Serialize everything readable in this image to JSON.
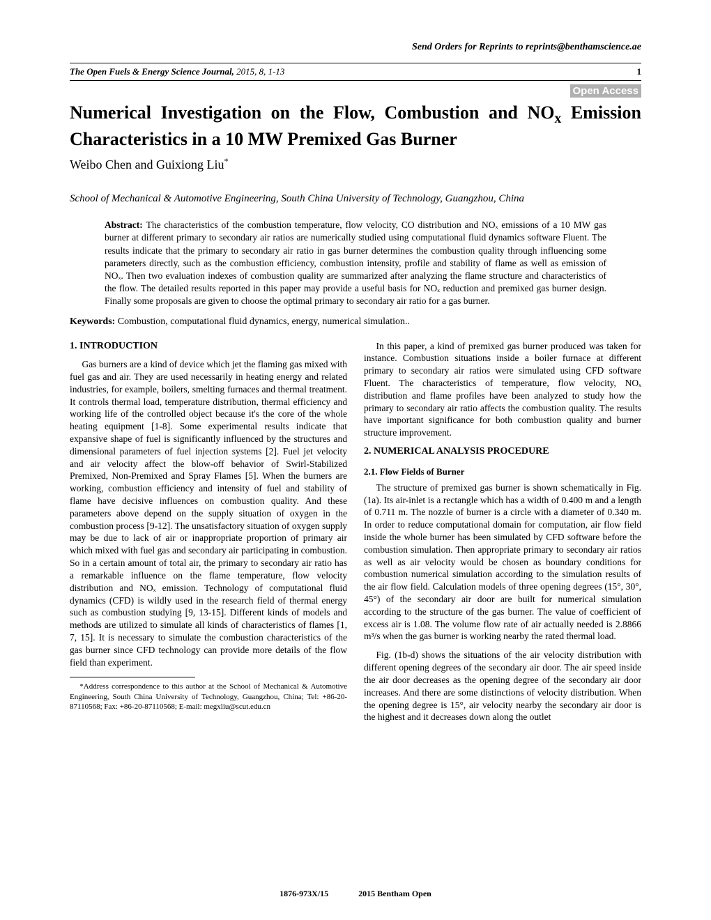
{
  "reprints": "Send Orders for Reprints to reprints@benthamscience.ae",
  "journal": {
    "name": "The Open Fuels & Energy Science Journal,",
    "year_vol_pages": " 2015, 8, 1-13",
    "page": "1"
  },
  "open_access": "Open Access",
  "title_line1": "Numerical Investigation on the Flow, Combustion and NO",
  "title_sub": "x",
  "title_line1b": " Emission",
  "title_line2": "Characteristics in a 10 MW Premixed Gas Burner",
  "authors": "Weibo Chen and Guixiong Liu",
  "author_sup": "*",
  "affiliation": "School of Mechanical & Automotive Engineering, South China University of Technology, Guangzhou, China",
  "abstract_label": "Abstract: ",
  "abstract_text": "The characteristics of the combustion temperature, flow velocity, CO distribution and NOₓ emissions of a 10 MW gas burner at different primary to secondary air ratios are numerically studied using computational fluid dynamics software Fluent. The results indicate that the primary to secondary air ratio in gas burner determines the combustion quality through influencing some parameters directly, such as the combustion efficiency, combustion intensity, profile and stability of flame as well as emission of NOₓ. Then two evaluation indexes of combustion quality are summarized after analyzing the flame structure and characteristics of the flow. The detailed results reported in this paper may provide a useful basis for NOₓ reduction and premixed gas burner design. Finally some proposals are given to choose the optimal primary to secondary air ratio for a gas burner.",
  "keywords_label": "Keywords: ",
  "keywords_text": "Combustion, computational fluid dynamics, energy, numerical simulation..",
  "sec1_heading": "1. INTRODUCTION",
  "sec1_p1": "Gas burners are a kind of device which jet the flaming gas mixed with fuel gas and air. They are used necessarily in heating energy and related industries, for example, boilers, smelting furnaces and thermal treatment. It controls thermal load, temperature distribution, thermal efficiency and working life of the controlled object because it's the core of the whole heating equipment [1-8]. Some experimental results indicate that expansive shape of fuel is significantly influenced by the structures and dimensional parameters of fuel injection systems [2]. Fuel jet velocity and air velocity affect the blow-off behavior of Swirl-Stabilized Premixed, Non-Premixed and Spray Flames [5]. When the burners are working, combustion efficiency and intensity of fuel and stability of flame have decisive influences on combustion quality. And these parameters above depend on the supply situation of oxygen in the combustion process [9-12]. The unsatisfactory situation of oxygen supply may be due to lack of air or inappropriate proportion of primary air which mixed with fuel gas and secondary air participating in combustion. So in a certain amount of total air, the primary to secondary air ratio has a remarkable influence on the flame temperature, flow velocity distribution and NOₓ emission. Technology of computational fluid dynamics (CFD) is wildly used in the research field of thermal energy such as combustion studying [9, 13-15]. Different kinds of models and methods are utilized to simulate all kinds of characteristics of flames [1, 7, 15]. It is necessary to simulate the combustion characteristics of the gas burner since CFD technology can provide more details of the flow field than experiment.",
  "correspondence": "*Address correspondence to this author at the School of Mechanical & Automotive Engineering, South China University of Technology, Guangzhou, China; Tel: +86-20-87110568; Fax: +86-20-87110568; E-mail: megxliu@scut.edu.cn",
  "sec1_p2": "In this paper, a kind of premixed gas burner produced was taken for instance. Combustion situations inside a boiler furnace at different primary to secondary air ratios were simulated using CFD software Fluent. The characteristics of temperature, flow velocity, NOₓ distribution and flame profiles have been analyzed to study how the primary to secondary air ratio affects the combustion quality. The results have important significance for both combustion quality and burner structure improvement.",
  "sec2_heading": "2. NUMERICAL ANALYSIS PROCEDURE",
  "sec2_1_heading": "2.1. Flow Fields of Burner",
  "sec2_p1": "The structure of premixed gas burner is shown schematically in Fig. (1a). Its air-inlet is a rectangle which has a width of 0.400 m and a length of 0.711 m. The nozzle of burner is a circle with a diameter of 0.340 m. In order to reduce computational domain for computation, air flow field inside the whole burner has been simulated by CFD software before the combustion simulation. Then appropriate primary to secondary air ratios as well as air velocity would be chosen as boundary conditions for combustion numerical simulation according to the simulation results of the air flow field. Calculation models of three opening degrees (15°, 30°, 45°) of the secondary air door are built for numerical simulation according to the structure of the gas burner. The value of coefficient of excess air is 1.08. The volume flow rate of air actually needed is 2.8866 m³/s when the gas burner is working nearby the rated thermal load.",
  "sec2_p2": "Fig. (1b-d) shows the situations of the air velocity distribution with different opening degrees of the secondary air door. The air speed inside the air door decreases as the opening degree of the secondary air door increases. And there are some distinctions of velocity distribution. When the opening degree is 15°, air velocity nearby the secondary air door is the highest and it decreases down along the outlet",
  "footer_issn": "1876-973X/15",
  "footer_pub": "2015 Bentham Open"
}
